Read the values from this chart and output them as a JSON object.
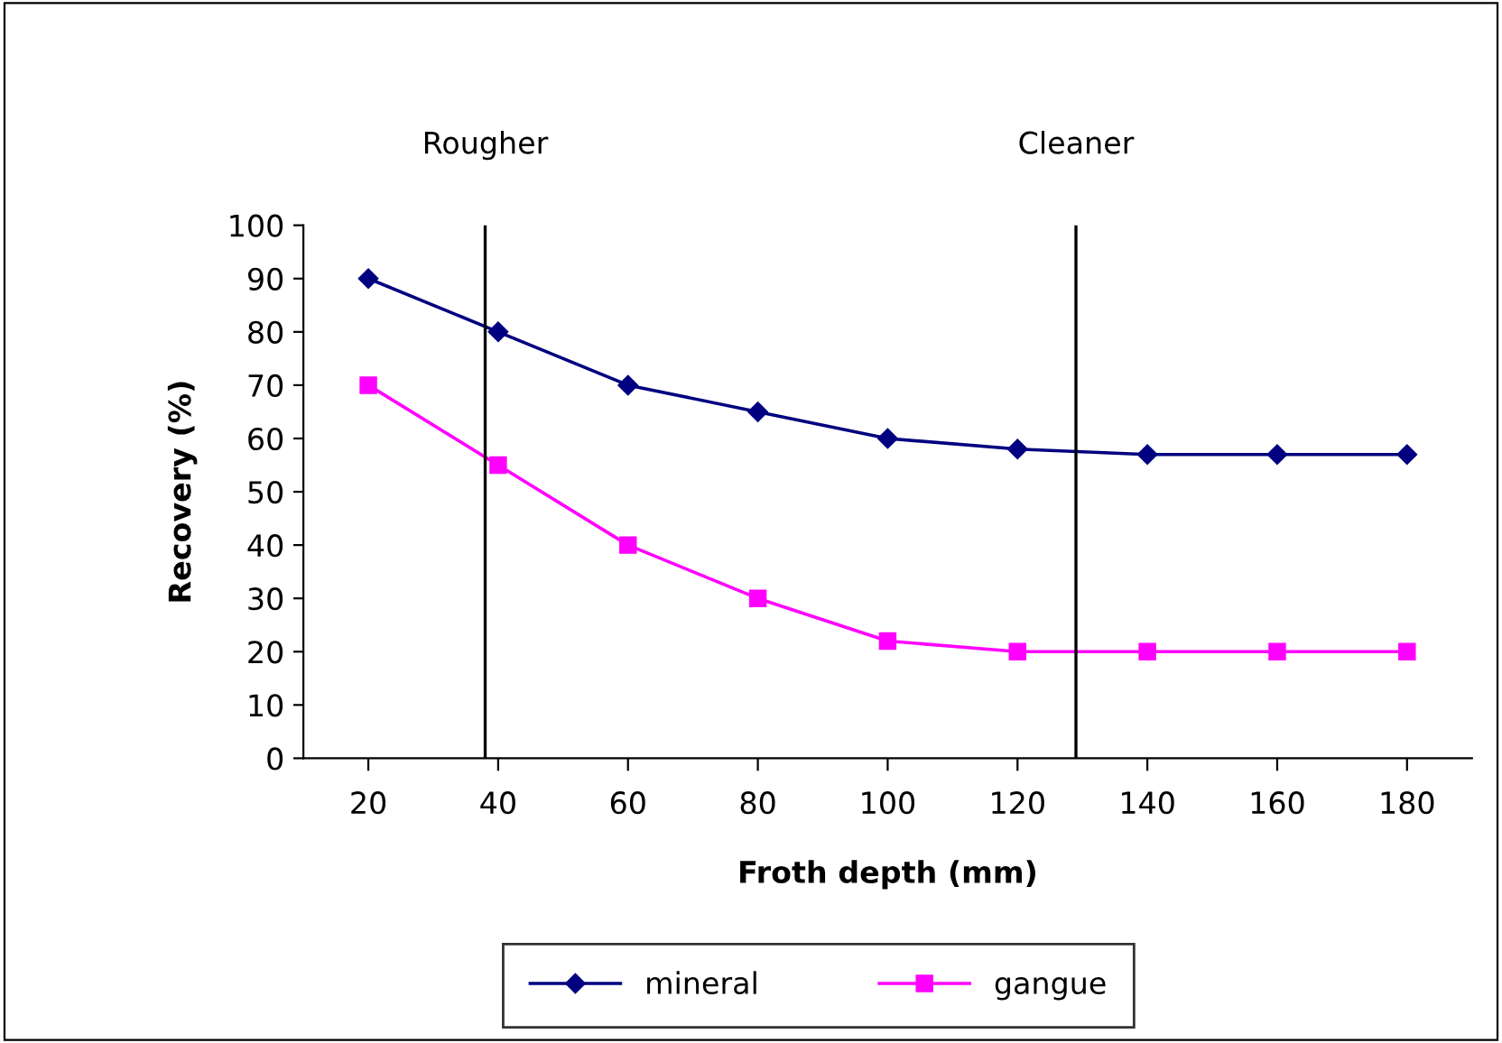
{
  "chart_data": {
    "type": "line",
    "xlabel": "Froth depth (mm)",
    "ylabel": "Recovery (%)",
    "x": [
      20,
      40,
      60,
      80,
      100,
      120,
      140,
      160,
      180
    ],
    "xlim": [
      10,
      190
    ],
    "xticks": [
      20,
      40,
      60,
      80,
      100,
      120,
      140,
      160,
      180
    ],
    "ylim": [
      0,
      100
    ],
    "yticks": [
      0,
      10,
      20,
      30,
      40,
      50,
      60,
      70,
      80,
      90,
      100
    ],
    "series": [
      {
        "name": "mineral",
        "color": "#000080",
        "values": [
          90,
          80,
          70,
          65,
          60,
          58,
          57,
          57,
          57
        ],
        "marker": "diamond"
      },
      {
        "name": "gangue",
        "color": "#ff00ff",
        "values": [
          70,
          55,
          40,
          30,
          22,
          20,
          20,
          20,
          20
        ],
        "marker": "square"
      }
    ],
    "ref_lines": [
      {
        "axis": "x",
        "value": 38,
        "label": "Rougher",
        "color": "#000000"
      },
      {
        "axis": "x",
        "value": 129,
        "label": "Cleaner",
        "color": "#000000"
      }
    ],
    "grid": false,
    "legend": "bottom"
  }
}
